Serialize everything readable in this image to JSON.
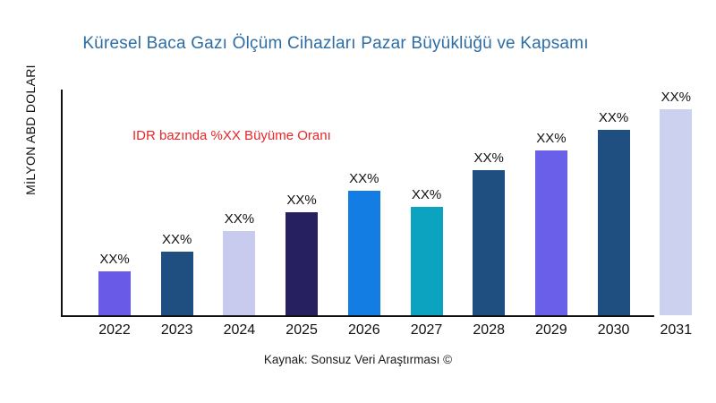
{
  "title": "Küresel Baca Gazı Ölçüm Cihazları Pazar Büyüklüğü ve Kapsamı",
  "title_color": "#2d6da3",
  "y_axis_label": "MİLYON ABD DOLARI",
  "annotation": {
    "text": "IDR bazında %XX Büyüme Oranı",
    "color": "#e8262a"
  },
  "source": "Kaynak: Sonsuz Veri Araştırması ©",
  "chart_data": {
    "type": "bar",
    "title": "Küresel Baca Gazı Ölçüm Cihazları Pazar Büyüklüğü ve Kapsamı",
    "xlabel": "",
    "ylabel": "MİLYON ABD DOLARI",
    "categories": [
      "2022",
      "2023",
      "2024",
      "2025",
      "2026",
      "2027",
      "2028",
      "2029",
      "2030",
      "2031"
    ],
    "values": [
      49,
      71,
      94,
      115,
      139,
      121,
      162,
      184,
      207,
      230
    ],
    "value_labels": [
      "XX%",
      "XX%",
      "XX%",
      "XX%",
      "XX%",
      "XX%",
      "XX%",
      "XX%",
      "XX%",
      "XX%"
    ],
    "bar_colors": [
      "#6a5ae8",
      "#1f4e80",
      "#c8cbee",
      "#262060",
      "#147de3",
      "#0ba3bf",
      "#1f4e80",
      "#6a5fe9",
      "#1f4e80",
      "#cdd1f0"
    ],
    "ylim": [
      0,
      252
    ],
    "grid": false,
    "legend_position": "none",
    "annotation": "IDR bazında %XX Büyüme Oranı",
    "source": "Kaynak: Sonsuz Veri Araştırması ©"
  }
}
